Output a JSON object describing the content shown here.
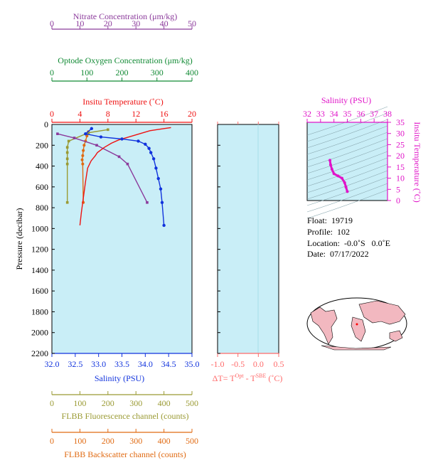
{
  "colors": {
    "nitrate": "#8b3a9b",
    "oxygen": "#118a34",
    "temperature": "#ee1111",
    "salinity": "#1133dd",
    "fluorescence": "#9a9a33",
    "backscatter": "#e06a12",
    "deltaT": "#ff6a6a",
    "ts_axis": "#e014c8",
    "plot_bg": "#c9eef7"
  },
  "axes": {
    "nitrate": {
      "label": "Nitrate Concentration (μm/kg)",
      "range": [
        0,
        50
      ],
      "ticks": [
        "0",
        "10",
        "20",
        "30",
        "40",
        "50"
      ]
    },
    "oxygen": {
      "label": "Optode Oxygen Concentration (μm/kg)",
      "range": [
        0,
        400
      ],
      "ticks": [
        "0",
        "100",
        "200",
        "300",
        "400"
      ]
    },
    "temperature": {
      "label": "Insitu Temperature (˚C)",
      "range": [
        0,
        20
      ],
      "ticks": [
        "0",
        "4",
        "8",
        "12",
        "16",
        "20"
      ]
    },
    "salinity": {
      "label": "Salinity (PSU)",
      "range": [
        32.0,
        35.0
      ],
      "ticks": [
        "32.0",
        "32.5",
        "33.0",
        "33.5",
        "34.0",
        "34.5",
        "35.0"
      ]
    },
    "pressure": {
      "label": "Pressure (decibar)",
      "range": [
        0,
        2200
      ],
      "ticks": [
        "0",
        "200",
        "400",
        "600",
        "800",
        "1000",
        "1200",
        "1400",
        "1600",
        "1800",
        "2000",
        "2200"
      ]
    },
    "fluorescence": {
      "label": "FLBB Fluorescence channel (counts)",
      "range": [
        0,
        500
      ],
      "ticks": [
        "0",
        "100",
        "200",
        "300",
        "400",
        "500"
      ]
    },
    "backscatter": {
      "label": "FLBB Backscatter channel (counts)",
      "range": [
        0,
        500
      ],
      "ticks": [
        "0",
        "100",
        "200",
        "300",
        "400",
        "500"
      ]
    },
    "deltaT": {
      "label_prefix": "ΔT= T",
      "label_sup1": "Opt",
      "label_mid": " - T",
      "label_sup2": "SBE",
      "label_suffix": " (˚C)",
      "range": [
        -1.0,
        0.5
      ],
      "ticks": [
        "-1.0",
        "-0.5",
        "0.0",
        "0.5"
      ]
    },
    "ts_salinity": {
      "label": "Salinity (PSU)",
      "range": [
        32,
        38
      ],
      "ticks": [
        "32",
        "33",
        "34",
        "35",
        "36",
        "37",
        "38"
      ]
    },
    "ts_temperature": {
      "label": "Insitu Temperature (˚C)",
      "range": [
        0,
        35
      ],
      "ticks": [
        "0",
        "5",
        "10",
        "15",
        "20",
        "25",
        "30",
        "35"
      ]
    }
  },
  "info": {
    "float": "Float:  19719",
    "profile": "Profile:  102",
    "location": "Location:  -0.0˚S   0.0˚E",
    "date": "Date:  07/17/2022"
  },
  "chart_data": {
    "type": "line",
    "y_axis": "pressure (decibar, increasing downward)",
    "series": [
      {
        "name": "Insitu Temperature",
        "x": [
          17.0,
          16.0,
          14.0,
          12.5,
          11.0,
          9.5,
          8.5,
          7.5,
          6.5,
          6.2,
          5.6,
          5.1,
          4.8,
          4.5,
          4.2,
          4.0
        ],
        "pressure": [
          30,
          40,
          60,
          90,
          120,
          150,
          180,
          220,
          270,
          300,
          350,
          420,
          550,
          700,
          850,
          970
        ]
      },
      {
        "name": "Salinity",
        "x": [
          32.85,
          32.72,
          33.05,
          33.5,
          33.85,
          34.0,
          34.08,
          34.12,
          34.18,
          34.23,
          34.28,
          34.33,
          34.36,
          34.4
        ],
        "pressure": [
          40,
          90,
          120,
          140,
          160,
          190,
          230,
          270,
          330,
          420,
          520,
          620,
          750,
          970
        ]
      },
      {
        "name": "Nitrate",
        "x": [
          2,
          8,
          16,
          24,
          27,
          34
        ],
        "pressure": [
          90,
          130,
          200,
          310,
          380,
          750
        ]
      },
      {
        "name": "FLBB Fluorescence",
        "x": [
          200,
          130,
          60,
          55,
          55,
          55,
          55,
          55
        ],
        "pressure": [
          50,
          80,
          160,
          220,
          270,
          330,
          380,
          750
        ]
      },
      {
        "name": "FLBB Backscatter",
        "x": [
          130,
          125,
          120,
          115,
          112,
          110,
          108,
          110,
          112
        ],
        "pressure": [
          70,
          110,
          160,
          200,
          250,
          300,
          340,
          380,
          750
        ]
      },
      {
        "name": "T-S",
        "salinity": [
          33.7,
          33.75,
          33.85,
          34.0,
          34.3,
          34.6,
          34.8,
          34.9,
          35.0
        ],
        "temperature": [
          18,
          16,
          14,
          12,
          11,
          10,
          8,
          6,
          4
        ]
      }
    ]
  }
}
